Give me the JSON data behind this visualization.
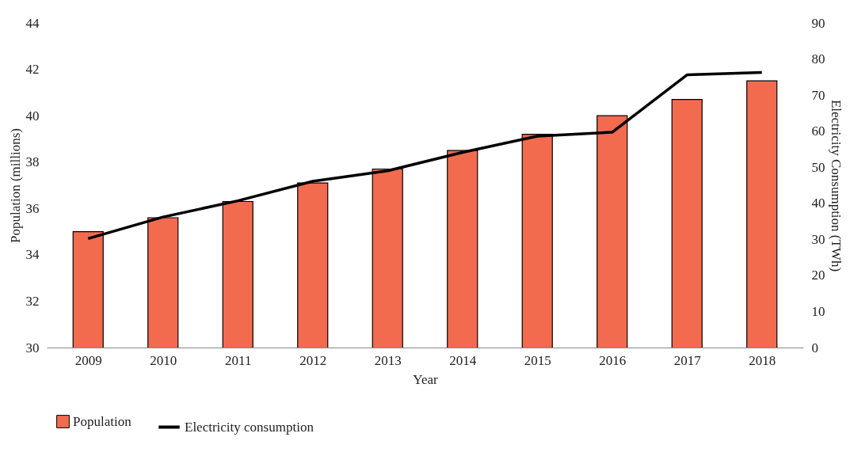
{
  "chart_data": {
    "type": "bar",
    "xlabel": "Year",
    "ylabel": "Population (millions)",
    "y2label": "Electricity Consumption (TWh)",
    "categories": [
      "2009",
      "2010",
      "2011",
      "2012",
      "2013",
      "2014",
      "2015",
      "2016",
      "2017",
      "2018"
    ],
    "series": [
      {
        "name": "Population",
        "color": "#f26b4f",
        "values": [
          35.0,
          35.6,
          36.3,
          37.1,
          37.7,
          38.5,
          39.2,
          40.0,
          40.7,
          41.5
        ]
      },
      {
        "name": "Electricity consumption",
        "type": "line",
        "axis": "y2",
        "color": "#000000",
        "values": [
          30.2,
          36.2,
          40.7,
          46.1,
          49.0,
          54.1,
          58.6,
          59.7,
          75.6,
          76.3
        ]
      }
    ],
    "ylim": [
      30,
      44
    ],
    "yticks": [
      30,
      32,
      34,
      36,
      38,
      40,
      42,
      44
    ],
    "y2lim": [
      0,
      90
    ],
    "y2ticks": [
      0,
      10,
      20,
      30,
      40,
      50,
      60,
      70,
      80,
      90
    ],
    "grid": false,
    "legend": "bottom",
    "marker": "none",
    "line_style": "solid"
  }
}
